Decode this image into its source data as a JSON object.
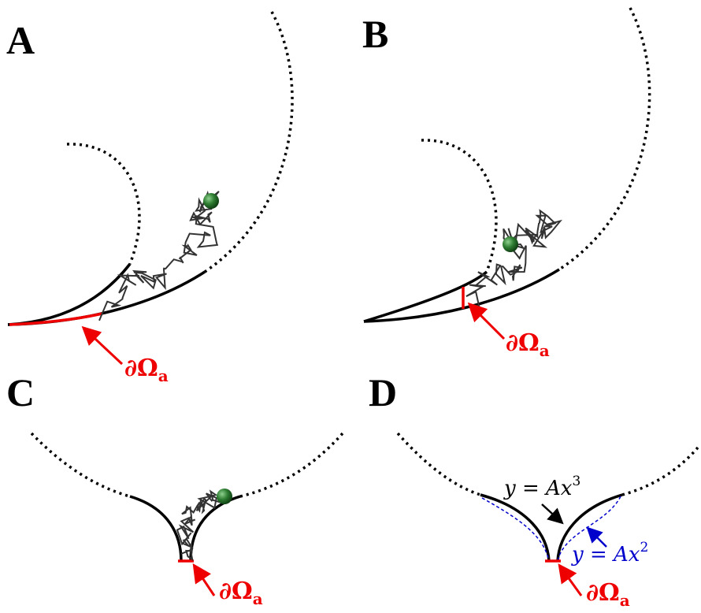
{
  "panels": [
    {
      "label": "A",
      "boundary_label": {
        "symbol": "∂Ω",
        "subscript": "a"
      }
    },
    {
      "label": "B",
      "boundary_label": {
        "symbol": "∂Ω",
        "subscript": "a"
      }
    },
    {
      "label": "C",
      "boundary_label": {
        "symbol": "∂Ω",
        "subscript": "a"
      }
    },
    {
      "label": "D",
      "boundary_label": {
        "symbol": "∂Ω",
        "subscript": "a"
      }
    }
  ],
  "equations": [
    {
      "lhs": "y = Ax",
      "exponent": "3"
    },
    {
      "lhs": "y = Ax",
      "exponent": "2"
    }
  ]
}
